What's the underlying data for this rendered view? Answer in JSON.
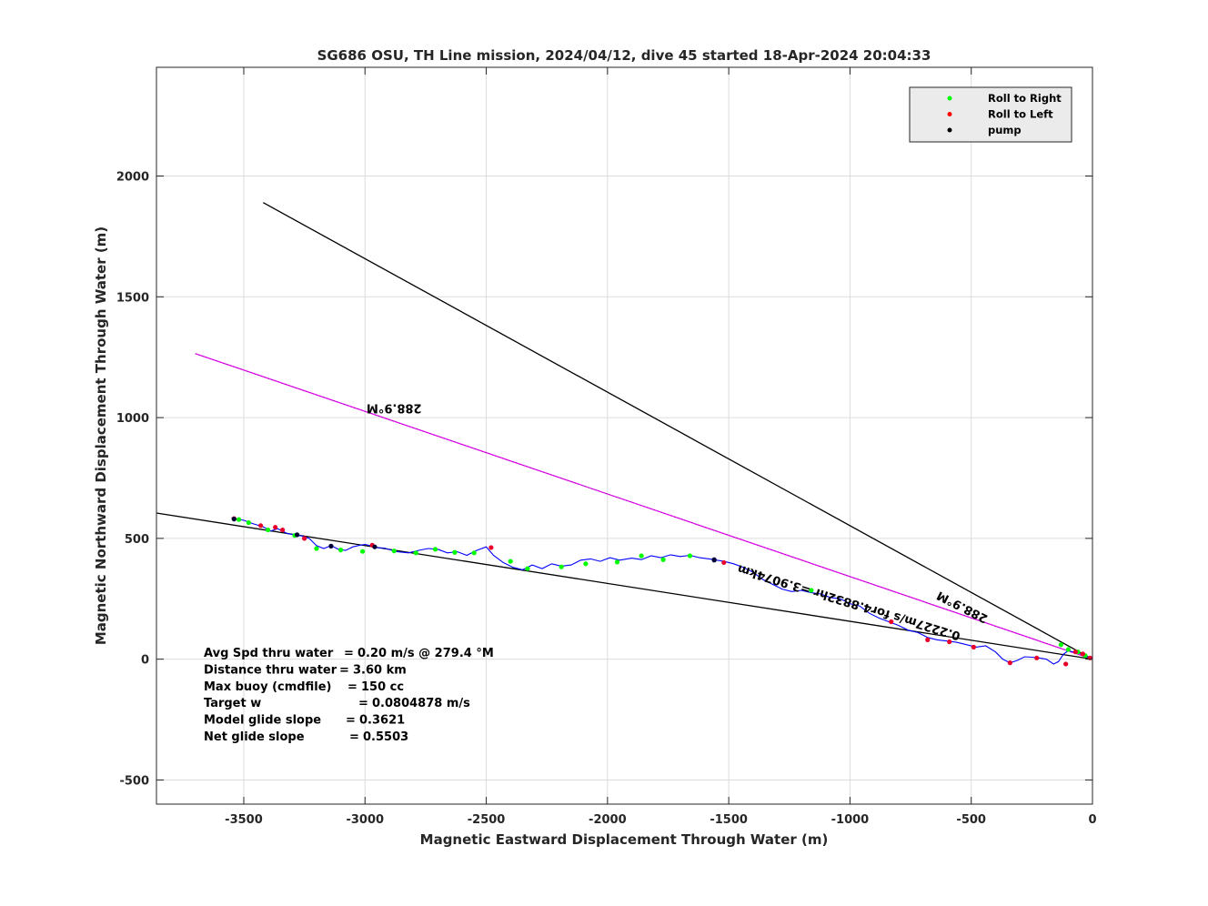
{
  "chart_data": {
    "type": "line",
    "title": "SG686 OSU, TH Line mission, 2024/04/12, dive 45 started 18-Apr-2024 20:04:33",
    "xlabel": "Magnetic Eastward Displacement Through Water (m)",
    "ylabel": "Magnetic Northward Displacement Through Water (m)",
    "xlim": [
      -3860,
      0
    ],
    "ylim": [
      -600,
      2450
    ],
    "xticks": [
      -3500,
      -3000,
      -2500,
      -2000,
      -1500,
      -1000,
      -500,
      0
    ],
    "yticks": [
      -500,
      0,
      500,
      1000,
      1500,
      2000
    ],
    "grid": true,
    "legend_position": "top-right",
    "legend": [
      {
        "label": "Roll to Right",
        "color": "#00ff00"
      },
      {
        "label": "Roll to Left",
        "color": "#ff0000"
      },
      {
        "label": "pump",
        "color": "#000000"
      }
    ],
    "stats": [
      {
        "label": "Avg Spd thru water",
        "sep": "=",
        "value": "0.20 m/s @ 279.4 °M"
      },
      {
        "label": "Distance thru water",
        "sep": "=",
        "value": "3.60 km"
      },
      {
        "label": "Max buoy (cmdfile)",
        "sep": "=",
        "value": "150 cc"
      },
      {
        "label": "Target w",
        "sep": "=",
        "value": "0.0804878 m/s"
      },
      {
        "label": "Model glide slope",
        "sep": "=",
        "value": "0.3621"
      },
      {
        "label": "Net glide slope",
        "sep": "=",
        "value": "0.5503"
      }
    ],
    "annotations": [
      {
        "text": "288.9°M",
        "x": -2880,
        "y": 1055,
        "angle_deg": 180
      },
      {
        "text": "288.9°M",
        "x": -530,
        "y": 230,
        "angle_deg": 207
      },
      {
        "text": "0.2227m/s for4.8832hr =3.9074km",
        "x": -1000,
        "y": 250,
        "angle_deg": 197
      }
    ],
    "lines": [
      {
        "name": "",
        "color": "#000000",
        "x": [
          0,
          -3420
        ],
        "y": [
          0,
          1890
        ]
      },
      {
        "name": "",
        "color": "#ff00ff",
        "x": [
          0,
          -3700
        ],
        "y": [
          0,
          1265
        ]
      },
      {
        "name": "",
        "color": "#000000",
        "x": [
          0,
          -3860
        ],
        "y": [
          0,
          605
        ]
      }
    ],
    "track": {
      "name": "",
      "color": "#0000ff",
      "x": [
        -3550,
        -3500,
        -3460,
        -3420,
        -3390,
        -3360,
        -3320,
        -3290,
        -3260,
        -3230,
        -3200,
        -3170,
        -3140,
        -3110,
        -3080,
        -3050,
        -3020,
        -3000,
        -2980,
        -2960,
        -2920,
        -2870,
        -2820,
        -2780,
        -2740,
        -2700,
        -2660,
        -2620,
        -2580,
        -2540,
        -2500,
        -2470,
        -2430,
        -2390,
        -2350,
        -2310,
        -2270,
        -2230,
        -2190,
        -2150,
        -2110,
        -2070,
        -2030,
        -1990,
        -1950,
        -1900,
        -1860,
        -1820,
        -1780,
        -1740,
        -1700,
        -1660,
        -1620,
        -1580,
        -1550,
        -1520,
        -1480,
        -1440,
        -1400,
        -1360,
        -1320,
        -1280,
        -1240,
        -1200,
        -1160,
        -1120,
        -1080,
        -1040,
        -1000,
        -960,
        -920,
        -880,
        -840,
        -800,
        -760,
        -720,
        -680,
        -640,
        -600,
        -560,
        -520,
        -480,
        -440,
        -400,
        -370,
        -340,
        -310,
        -280,
        -250,
        -220,
        -190,
        -160,
        -140,
        -120,
        -100,
        -80,
        -60,
        -40,
        -20,
        0
      ],
      "y": [
        585,
        575,
        560,
        548,
        530,
        540,
        520,
        515,
        510,
        500,
        470,
        458,
        470,
        455,
        450,
        465,
        472,
        475,
        470,
        462,
        460,
        445,
        440,
        450,
        458,
        455,
        440,
        445,
        430,
        450,
        465,
        430,
        400,
        380,
        370,
        390,
        375,
        395,
        385,
        390,
        410,
        415,
        405,
        420,
        410,
        418,
        412,
        428,
        420,
        432,
        425,
        430,
        420,
        415,
        410,
        405,
        395,
        380,
        360,
        330,
        310,
        290,
        280,
        285,
        275,
        270,
        255,
        250,
        230,
        220,
        190,
        170,
        155,
        140,
        120,
        110,
        90,
        80,
        75,
        70,
        60,
        50,
        55,
        30,
        0,
        -15,
        -5,
        10,
        8,
        5,
        0,
        -20,
        -10,
        20,
        35,
        30,
        25,
        18,
        10,
        0
      ]
    },
    "markers": {
      "right": {
        "x": [
          -3520,
          -3480,
          -3400,
          -3290,
          -3200,
          -3100,
          -3010,
          -2880,
          -2790,
          -2710,
          -2630,
          -2550,
          -2400,
          -2330,
          -2190,
          -2090,
          -1960,
          -1860,
          -1770,
          -1660,
          -1160,
          -130,
          -100,
          -60,
          -30
        ],
        "y": [
          578,
          565,
          535,
          512,
          458,
          452,
          446,
          448,
          440,
          455,
          442,
          440,
          405,
          375,
          382,
          395,
          402,
          428,
          412,
          428,
          285,
          60,
          40,
          30,
          15
        ]
      },
      "left": {
        "x": [
          -3540,
          -3430,
          -3370,
          -3340,
          -3250,
          -2970,
          -2480,
          -1520,
          -830,
          -680,
          -590,
          -490,
          -340,
          -230,
          -110,
          -70,
          -40,
          -10
        ],
        "y": [
          582,
          553,
          546,
          535,
          500,
          472,
          462,
          400,
          155,
          80,
          72,
          50,
          -15,
          5,
          -20,
          30,
          22,
          5
        ]
      },
      "pump": {
        "x": [
          -3540,
          -3280,
          -3140,
          -2960,
          -1560,
          -1560
        ],
        "y": [
          580,
          515,
          468,
          465,
          410,
          412
        ]
      }
    }
  }
}
